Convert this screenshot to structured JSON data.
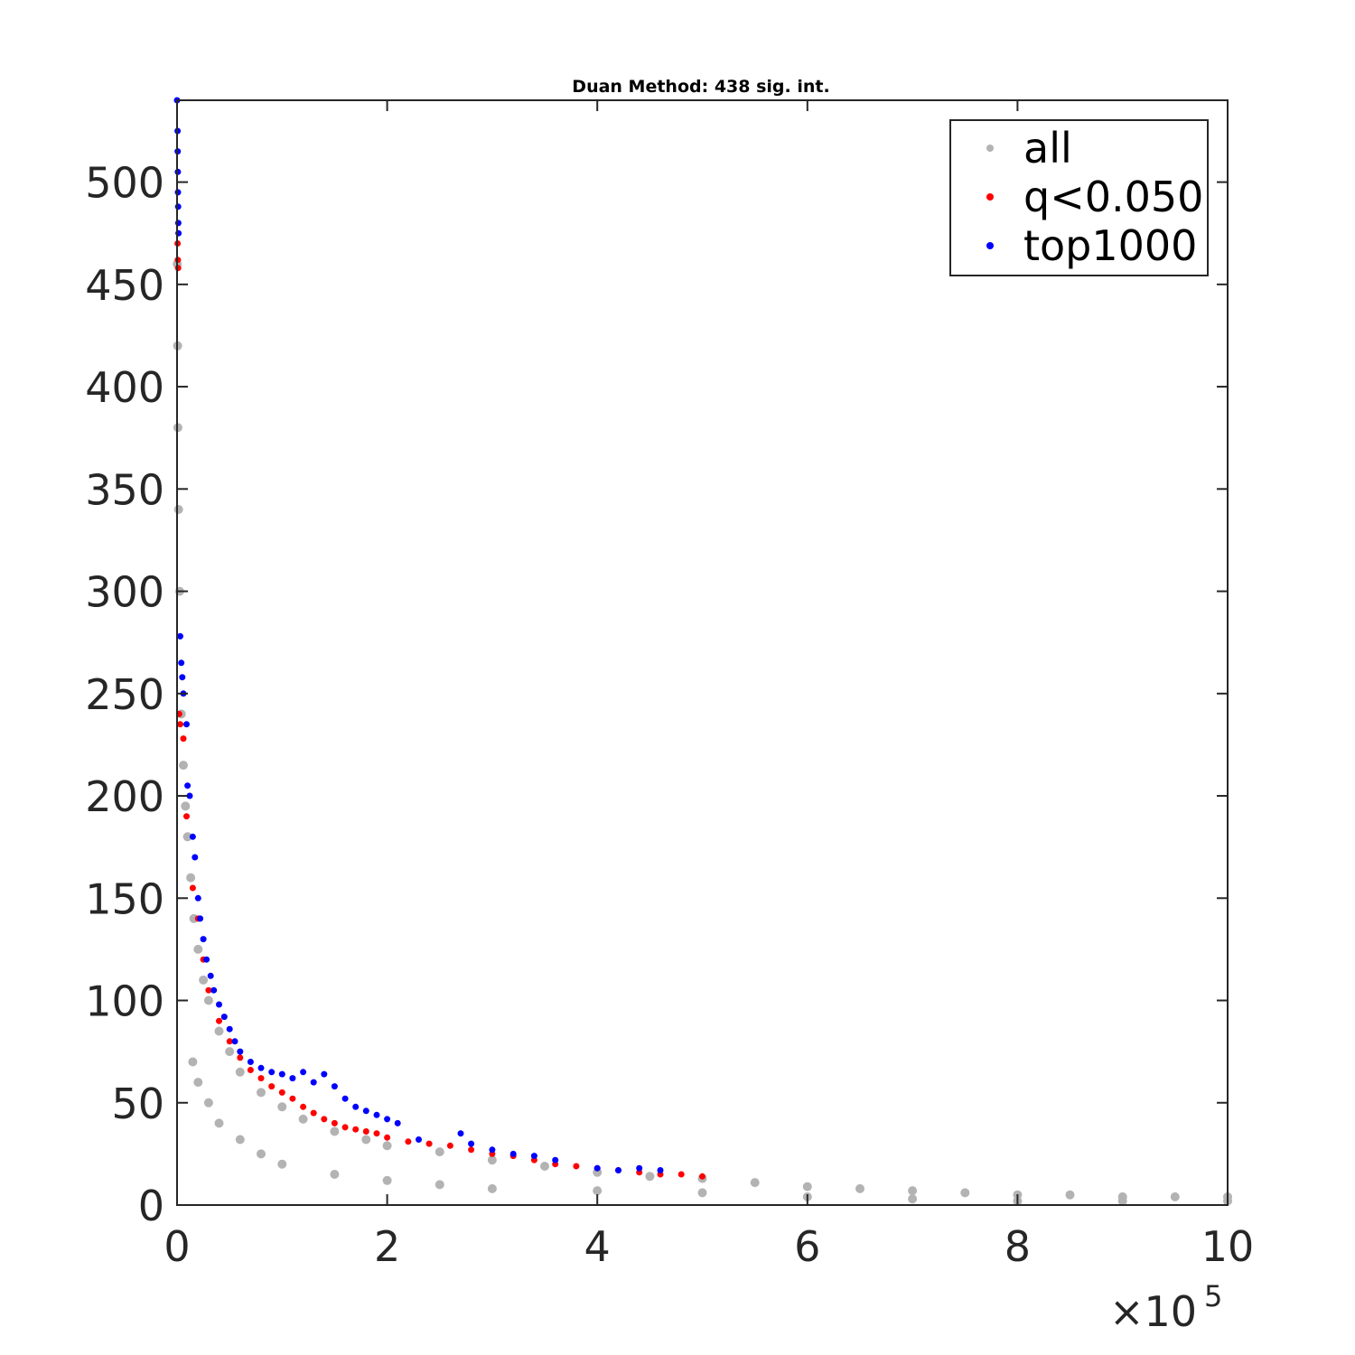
{
  "chart_data": {
    "type": "scatter",
    "title": "Duan Method: 438 sig. int.",
    "xlabel": "",
    "ylabel": "",
    "xlim": [
      0,
      1000000
    ],
    "ylim": [
      0,
      540
    ],
    "x_ticks": [
      0,
      200000,
      400000,
      600000,
      800000,
      1000000
    ],
    "x_tick_labels": [
      "0",
      "2",
      "4",
      "6",
      "8",
      "10"
    ],
    "x_exponent_label": "×10",
    "x_exponent_power": "5",
    "y_ticks": [
      0,
      50,
      100,
      150,
      200,
      250,
      300,
      350,
      400,
      450,
      500
    ],
    "y_tick_labels": [
      "0",
      "50",
      "100",
      "150",
      "200",
      "250",
      "300",
      "350",
      "400",
      "450",
      "500"
    ],
    "grid": false,
    "legend_position": "top-right",
    "series": [
      {
        "name": "all",
        "color": "#b3b3b3",
        "points": [
          [
            200,
            460
          ],
          [
            500,
            420
          ],
          [
            800,
            380
          ],
          [
            1500,
            340
          ],
          [
            2500,
            300
          ],
          [
            4000,
            240
          ],
          [
            6000,
            215
          ],
          [
            8000,
            195
          ],
          [
            10000,
            180
          ],
          [
            13000,
            160
          ],
          [
            16000,
            140
          ],
          [
            20000,
            125
          ],
          [
            25000,
            110
          ],
          [
            30000,
            100
          ],
          [
            40000,
            85
          ],
          [
            50000,
            75
          ],
          [
            60000,
            65
          ],
          [
            80000,
            55
          ],
          [
            100000,
            48
          ],
          [
            120000,
            42
          ],
          [
            150000,
            36
          ],
          [
            180000,
            32
          ],
          [
            200000,
            29
          ],
          [
            250000,
            26
          ],
          [
            300000,
            22
          ],
          [
            350000,
            19
          ],
          [
            400000,
            16
          ],
          [
            450000,
            14
          ],
          [
            500000,
            13
          ],
          [
            550000,
            11
          ],
          [
            600000,
            9
          ],
          [
            650000,
            8
          ],
          [
            700000,
            7
          ],
          [
            750000,
            6
          ],
          [
            800000,
            5
          ],
          [
            850000,
            5
          ],
          [
            900000,
            4
          ],
          [
            950000,
            4
          ],
          [
            1000000,
            4
          ],
          [
            15000,
            70
          ],
          [
            20000,
            60
          ],
          [
            30000,
            50
          ],
          [
            40000,
            40
          ],
          [
            60000,
            32
          ],
          [
            80000,
            25
          ],
          [
            100000,
            20
          ],
          [
            150000,
            15
          ],
          [
            200000,
            12
          ],
          [
            250000,
            10
          ],
          [
            300000,
            8
          ],
          [
            400000,
            7
          ],
          [
            500000,
            6
          ],
          [
            600000,
            4
          ],
          [
            700000,
            3
          ],
          [
            800000,
            2
          ],
          [
            900000,
            2
          ],
          [
            1000000,
            2
          ]
        ]
      },
      {
        "name": "q<0.050",
        "color": "#ff0000",
        "points": [
          [
            500,
            470
          ],
          [
            800,
            462
          ],
          [
            1000,
            458
          ],
          [
            2000,
            240
          ],
          [
            3000,
            235
          ],
          [
            6000,
            228
          ],
          [
            9000,
            190
          ],
          [
            15000,
            155
          ],
          [
            20000,
            140
          ],
          [
            25000,
            120
          ],
          [
            30000,
            105
          ],
          [
            40000,
            90
          ],
          [
            50000,
            80
          ],
          [
            60000,
            72
          ],
          [
            70000,
            66
          ],
          [
            80000,
            62
          ],
          [
            90000,
            58
          ],
          [
            100000,
            55
          ],
          [
            110000,
            52
          ],
          [
            120000,
            48
          ],
          [
            130000,
            45
          ],
          [
            140000,
            42
          ],
          [
            150000,
            40
          ],
          [
            160000,
            38
          ],
          [
            170000,
            37
          ],
          [
            180000,
            36
          ],
          [
            190000,
            35
          ],
          [
            200000,
            33
          ],
          [
            220000,
            31
          ],
          [
            240000,
            30
          ],
          [
            260000,
            29
          ],
          [
            280000,
            27
          ],
          [
            300000,
            25
          ],
          [
            320000,
            24
          ],
          [
            340000,
            22
          ],
          [
            360000,
            20
          ],
          [
            380000,
            19
          ],
          [
            400000,
            18
          ],
          [
            420000,
            17
          ],
          [
            440000,
            16
          ],
          [
            460000,
            15
          ],
          [
            480000,
            15
          ],
          [
            500000,
            14
          ]
        ]
      },
      {
        "name": "top1000",
        "color": "#0000ff",
        "points": [
          [
            0,
            540
          ],
          [
            500,
            525
          ],
          [
            600,
            515
          ],
          [
            800,
            505
          ],
          [
            900,
            495
          ],
          [
            1000,
            488
          ],
          [
            1200,
            480
          ],
          [
            1400,
            475
          ],
          [
            3000,
            278
          ],
          [
            4000,
            265
          ],
          [
            5000,
            258
          ],
          [
            6000,
            250
          ],
          [
            9000,
            235
          ],
          [
            10000,
            205
          ],
          [
            12000,
            200
          ],
          [
            15000,
            180
          ],
          [
            17000,
            170
          ],
          [
            20000,
            150
          ],
          [
            22000,
            140
          ],
          [
            25000,
            130
          ],
          [
            28000,
            120
          ],
          [
            32000,
            112
          ],
          [
            35000,
            105
          ],
          [
            40000,
            98
          ],
          [
            45000,
            92
          ],
          [
            50000,
            86
          ],
          [
            55000,
            80
          ],
          [
            60000,
            75
          ],
          [
            70000,
            70
          ],
          [
            80000,
            67
          ],
          [
            90000,
            65
          ],
          [
            100000,
            64
          ],
          [
            110000,
            62
          ],
          [
            120000,
            65
          ],
          [
            130000,
            60
          ],
          [
            140000,
            64
          ],
          [
            150000,
            58
          ],
          [
            160000,
            52
          ],
          [
            170000,
            48
          ],
          [
            180000,
            46
          ],
          [
            190000,
            44
          ],
          [
            200000,
            42
          ],
          [
            210000,
            40
          ],
          [
            230000,
            32
          ],
          [
            270000,
            35
          ],
          [
            280000,
            30
          ],
          [
            300000,
            27
          ],
          [
            320000,
            25
          ],
          [
            340000,
            24
          ],
          [
            360000,
            22
          ],
          [
            400000,
            18
          ],
          [
            420000,
            17
          ],
          [
            440000,
            18
          ],
          [
            460000,
            17
          ]
        ]
      }
    ]
  }
}
